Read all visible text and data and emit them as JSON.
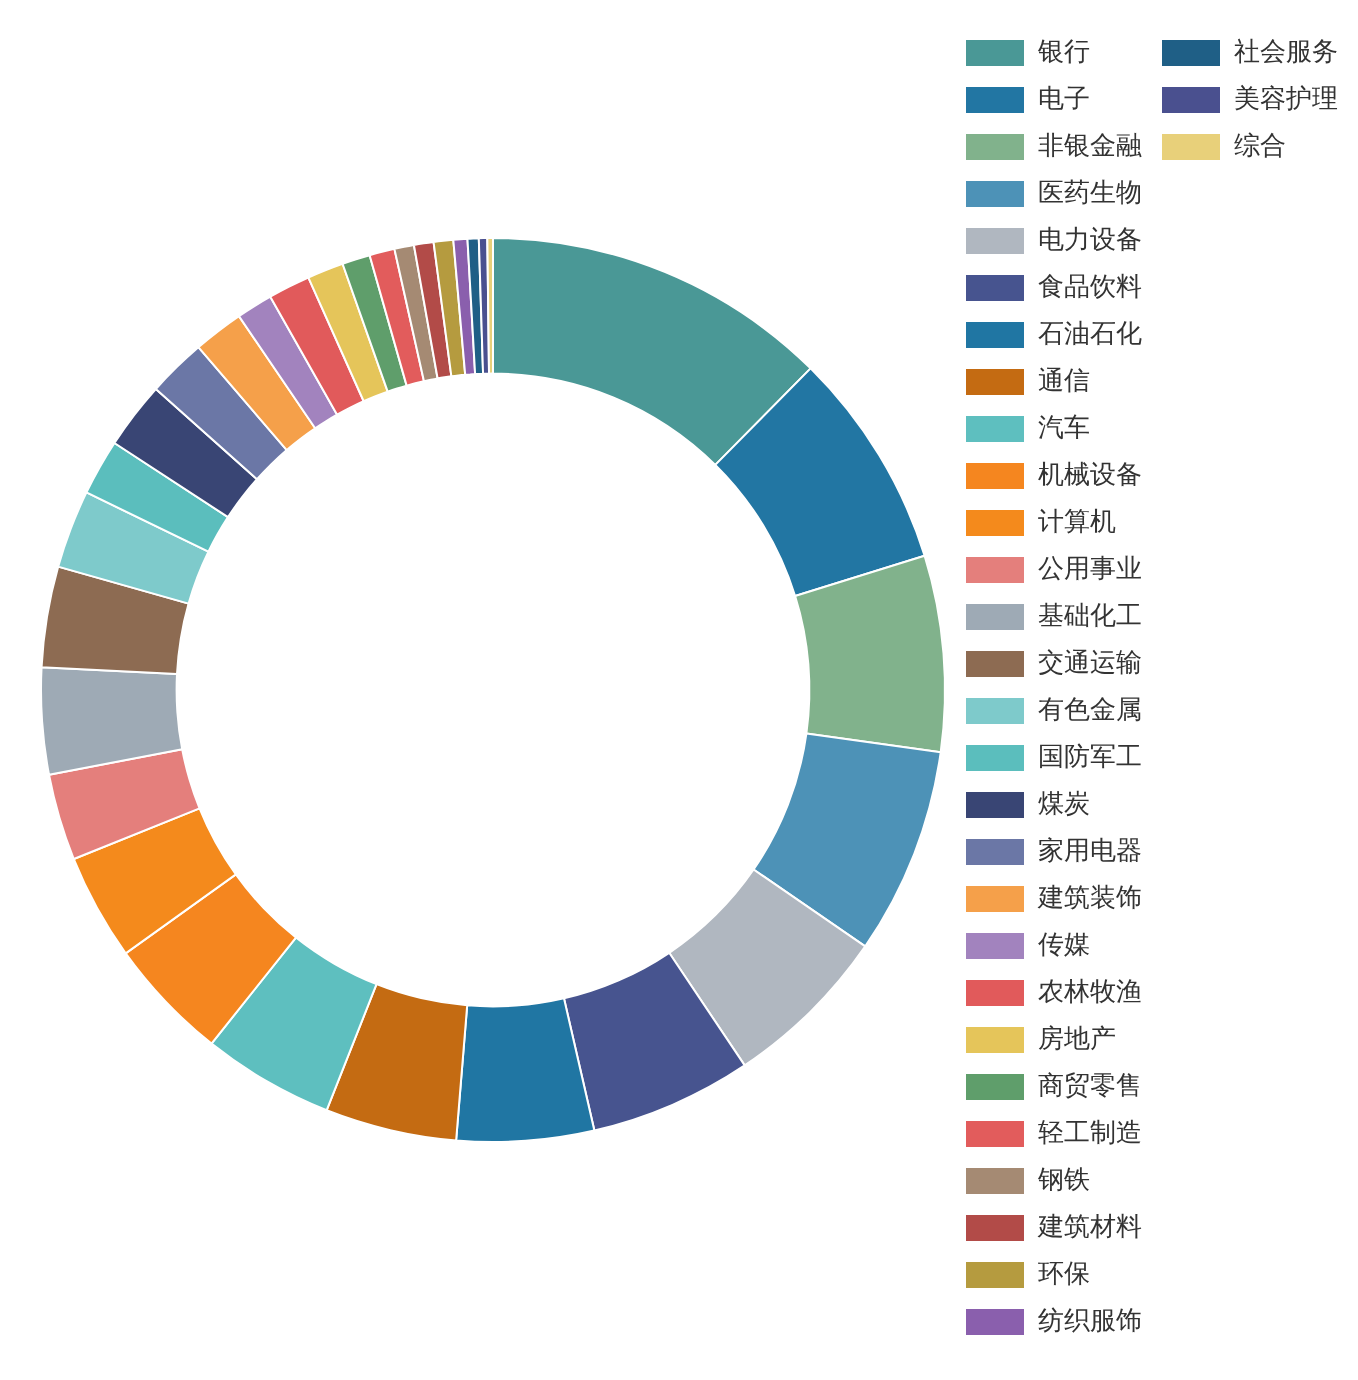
{
  "chart_data": {
    "type": "donut",
    "legend": "top right",
    "categories": [
      "银行",
      "电子",
      "非银金融",
      "医药生物",
      "电力设备",
      "食品饮料",
      "石油石化",
      "通信",
      "汽车",
      "机械设备",
      "计算机",
      "公用事业",
      "基础化工",
      "交通运输",
      "有色金属",
      "国防军工",
      "煤炭",
      "家用电器",
      "建筑装饰",
      "传媒",
      "农林牧渔",
      "房地产",
      "商贸零售",
      "轻工制造",
      "钢铁",
      "建筑材料",
      "环保",
      "纺织服饰",
      "社会服务",
      "美容护理",
      "综合"
    ],
    "values": [
      12.4,
      7.8,
      7,
      7.4,
      6,
      5.8,
      4.9,
      4.7,
      4.7,
      4.4,
      3.8,
      3.1,
      3.8,
      3.6,
      2.8,
      2,
      2.4,
      2.1,
      1.8,
      1.3,
      1.5,
      1.3,
      1.0,
      0.9,
      0.7,
      0.7,
      0.7,
      0.5,
      0.4,
      0.3,
      0.2
    ],
    "colors": [
      "#4a9896",
      "#2276a3",
      "#81b28c",
      "#4d92b7",
      "#b0b7c0",
      "#47548f",
      "#2076a3",
      "#c46b12",
      "#5ebfbf",
      "#f5861f",
      "#f48a1c",
      "#e47f7c",
      "#9eaab5",
      "#8d6b52",
      "#7ecacb",
      "#5bbebd",
      "#394574",
      "#6b77a6",
      "#f5a04a",
      "#a283be",
      "#e15a5b",
      "#e5c55a",
      "#5f9e6b",
      "#e25c5c",
      "#a58a73",
      "#b24b48",
      "#b59b3f",
      "#8a5fad",
      "#1f5f86",
      "#4a508f",
      "#e8d07a"
    ]
  }
}
